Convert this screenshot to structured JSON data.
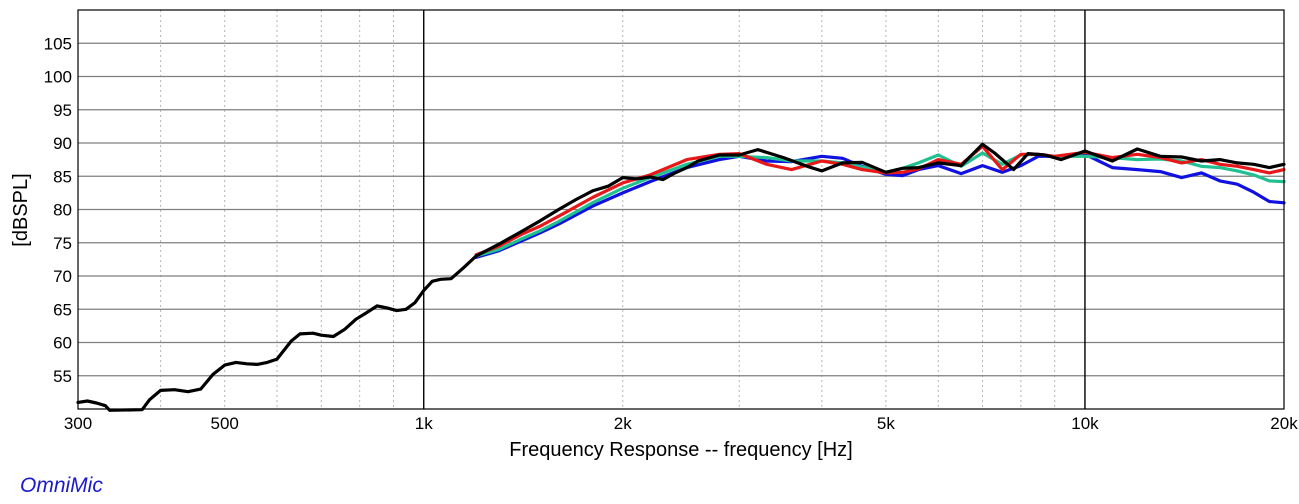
{
  "brand_label": "OmniMic",
  "colors": {
    "grid_major": "#7f7f7f",
    "grid_minor": "#b5b5b5",
    "grid_decade": "#000000",
    "blue": "#1010e0",
    "green": "#20c090",
    "red": "#e81818",
    "black": "#000000"
  },
  "chart_data": {
    "type": "line",
    "title": "",
    "xlabel": "Frequency Response -- frequency [Hz]",
    "ylabel": "[dBSPL]",
    "x_scale": "log",
    "xlim": [
      300,
      20000
    ],
    "ylim": [
      50,
      110
    ],
    "grid": true,
    "legend": "none",
    "x_ticks": [
      {
        "value": 300,
        "label": "300"
      },
      {
        "value": 500,
        "label": "500"
      },
      {
        "value": 1000,
        "label": "1k"
      },
      {
        "value": 2000,
        "label": "2k"
      },
      {
        "value": 5000,
        "label": "5k"
      },
      {
        "value": 10000,
        "label": "10k"
      },
      {
        "value": 20000,
        "label": "20k"
      }
    ],
    "y_ticks": [
      {
        "value": 55,
        "label": "55"
      },
      {
        "value": 60,
        "label": "60"
      },
      {
        "value": 65,
        "label": "65"
      },
      {
        "value": 70,
        "label": "70"
      },
      {
        "value": 75,
        "label": "75"
      },
      {
        "value": 80,
        "label": "80"
      },
      {
        "value": 85,
        "label": "85"
      },
      {
        "value": 90,
        "label": "90"
      },
      {
        "value": 95,
        "label": "95"
      },
      {
        "value": 100,
        "label": "100"
      },
      {
        "value": 105,
        "label": "105"
      }
    ],
    "series": [
      {
        "color": "#1010e0",
        "points": [
          [
            1200,
            72.8
          ],
          [
            1300,
            73.8
          ],
          [
            1400,
            75.2
          ],
          [
            1500,
            76.5
          ],
          [
            1600,
            77.8
          ],
          [
            1800,
            80.5
          ],
          [
            2000,
            82.5
          ],
          [
            2200,
            84.2
          ],
          [
            2500,
            86.3
          ],
          [
            2800,
            87.5
          ],
          [
            3000,
            88.0
          ],
          [
            3300,
            87.3
          ],
          [
            3600,
            87.2
          ],
          [
            4000,
            88.0
          ],
          [
            4300,
            87.7
          ],
          [
            4600,
            86.5
          ],
          [
            5000,
            85.3
          ],
          [
            5300,
            85.1
          ],
          [
            5600,
            86.0
          ],
          [
            6000,
            86.6
          ],
          [
            6500,
            85.4
          ],
          [
            7000,
            86.6
          ],
          [
            7500,
            85.6
          ],
          [
            8000,
            86.6
          ],
          [
            8500,
            88.0
          ],
          [
            9000,
            88.0
          ],
          [
            10000,
            88.3
          ],
          [
            11000,
            86.3
          ],
          [
            12000,
            86.0
          ],
          [
            13000,
            85.7
          ],
          [
            14000,
            84.8
          ],
          [
            15000,
            85.5
          ],
          [
            16000,
            84.3
          ],
          [
            17000,
            83.8
          ],
          [
            18000,
            82.6
          ],
          [
            19000,
            81.2
          ],
          [
            20000,
            81.0
          ]
        ]
      },
      {
        "color": "#20c090",
        "points": [
          [
            1200,
            73.0
          ],
          [
            1300,
            74.0
          ],
          [
            1400,
            75.5
          ],
          [
            1500,
            76.8
          ],
          [
            1600,
            78.2
          ],
          [
            1800,
            81.0
          ],
          [
            2000,
            83.2
          ],
          [
            2200,
            84.8
          ],
          [
            2500,
            86.8
          ],
          [
            2800,
            88.0
          ],
          [
            3000,
            88.0
          ],
          [
            3300,
            87.8
          ],
          [
            3600,
            87.3
          ],
          [
            4000,
            87.3
          ],
          [
            4300,
            87.0
          ],
          [
            4600,
            86.4
          ],
          [
            5000,
            85.6
          ],
          [
            5300,
            86.2
          ],
          [
            5600,
            87.0
          ],
          [
            6000,
            88.2
          ],
          [
            6500,
            86.5
          ],
          [
            7000,
            88.5
          ],
          [
            7500,
            86.8
          ],
          [
            8000,
            88.2
          ],
          [
            8500,
            88.3
          ],
          [
            9000,
            88.0
          ],
          [
            10000,
            88.0
          ],
          [
            11000,
            87.8
          ],
          [
            12000,
            87.5
          ],
          [
            13000,
            87.6
          ],
          [
            14000,
            87.3
          ],
          [
            15000,
            86.5
          ],
          [
            16000,
            86.3
          ],
          [
            17000,
            85.8
          ],
          [
            18000,
            85.2
          ],
          [
            19000,
            84.3
          ],
          [
            20000,
            84.2
          ]
        ]
      },
      {
        "color": "#e81818",
        "points": [
          [
            1200,
            73.2
          ],
          [
            1300,
            74.5
          ],
          [
            1400,
            76.2
          ],
          [
            1500,
            77.5
          ],
          [
            1600,
            79.0
          ],
          [
            1800,
            81.8
          ],
          [
            2000,
            84.0
          ],
          [
            2200,
            85.2
          ],
          [
            2500,
            87.5
          ],
          [
            2800,
            88.3
          ],
          [
            3000,
            88.4
          ],
          [
            3300,
            86.8
          ],
          [
            3600,
            86.0
          ],
          [
            4000,
            87.3
          ],
          [
            4300,
            86.8
          ],
          [
            4600,
            86.0
          ],
          [
            5000,
            85.5
          ],
          [
            5300,
            85.6
          ],
          [
            5600,
            86.1
          ],
          [
            6000,
            87.5
          ],
          [
            6500,
            86.8
          ],
          [
            7000,
            89.5
          ],
          [
            7500,
            86.0
          ],
          [
            8000,
            88.3
          ],
          [
            8500,
            88.3
          ],
          [
            9000,
            88.0
          ],
          [
            10000,
            88.6
          ],
          [
            11000,
            87.8
          ],
          [
            12000,
            88.3
          ],
          [
            13000,
            87.8
          ],
          [
            14000,
            87.0
          ],
          [
            15000,
            87.5
          ],
          [
            16000,
            86.8
          ],
          [
            17000,
            86.5
          ],
          [
            18000,
            86.0
          ],
          [
            19000,
            85.5
          ],
          [
            20000,
            86.0
          ]
        ]
      },
      {
        "color": "#000000",
        "points": [
          [
            300,
            51.0
          ],
          [
            310,
            51.2
          ],
          [
            320,
            50.9
          ],
          [
            330,
            50.5
          ],
          [
            335,
            49.8
          ],
          [
            375,
            49.9
          ],
          [
            385,
            51.4
          ],
          [
            400,
            52.8
          ],
          [
            420,
            52.9
          ],
          [
            440,
            52.6
          ],
          [
            460,
            53.0
          ],
          [
            480,
            55.2
          ],
          [
            500,
            56.6
          ],
          [
            520,
            57.0
          ],
          [
            540,
            56.8
          ],
          [
            560,
            56.7
          ],
          [
            580,
            57.0
          ],
          [
            600,
            57.5
          ],
          [
            630,
            60.2
          ],
          [
            650,
            61.3
          ],
          [
            680,
            61.4
          ],
          [
            700,
            61.1
          ],
          [
            730,
            60.9
          ],
          [
            760,
            62.0
          ],
          [
            790,
            63.5
          ],
          [
            820,
            64.5
          ],
          [
            850,
            65.5
          ],
          [
            880,
            65.2
          ],
          [
            910,
            64.8
          ],
          [
            940,
            65.0
          ],
          [
            970,
            66.0
          ],
          [
            1000,
            67.8
          ],
          [
            1030,
            69.2
          ],
          [
            1060,
            69.5
          ],
          [
            1100,
            69.6
          ],
          [
            1150,
            71.3
          ],
          [
            1200,
            73.0
          ],
          [
            1300,
            74.8
          ],
          [
            1400,
            76.6
          ],
          [
            1500,
            78.3
          ],
          [
            1600,
            80.0
          ],
          [
            1700,
            81.5
          ],
          [
            1800,
            82.8
          ],
          [
            1900,
            83.5
          ],
          [
            2000,
            84.8
          ],
          [
            2100,
            84.6
          ],
          [
            2200,
            84.9
          ],
          [
            2300,
            84.5
          ],
          [
            2400,
            85.5
          ],
          [
            2500,
            86.3
          ],
          [
            2600,
            87.3
          ],
          [
            2800,
            88.2
          ],
          [
            3000,
            88.2
          ],
          [
            3200,
            89.0
          ],
          [
            3500,
            87.8
          ],
          [
            3800,
            86.5
          ],
          [
            4000,
            85.8
          ],
          [
            4300,
            87.0
          ],
          [
            4600,
            87.1
          ],
          [
            5000,
            85.6
          ],
          [
            5300,
            86.2
          ],
          [
            5600,
            86.3
          ],
          [
            6000,
            87.0
          ],
          [
            6500,
            86.6
          ],
          [
            7000,
            89.8
          ],
          [
            7300,
            88.5
          ],
          [
            7800,
            86.0
          ],
          [
            8200,
            88.4
          ],
          [
            8700,
            88.2
          ],
          [
            9200,
            87.5
          ],
          [
            10000,
            88.8
          ],
          [
            11000,
            87.3
          ],
          [
            12000,
            89.1
          ],
          [
            13000,
            88.0
          ],
          [
            14000,
            87.9
          ],
          [
            15000,
            87.3
          ],
          [
            16000,
            87.5
          ],
          [
            17000,
            87.0
          ],
          [
            18000,
            86.8
          ],
          [
            19000,
            86.3
          ],
          [
            20000,
            86.8
          ]
        ]
      }
    ]
  }
}
